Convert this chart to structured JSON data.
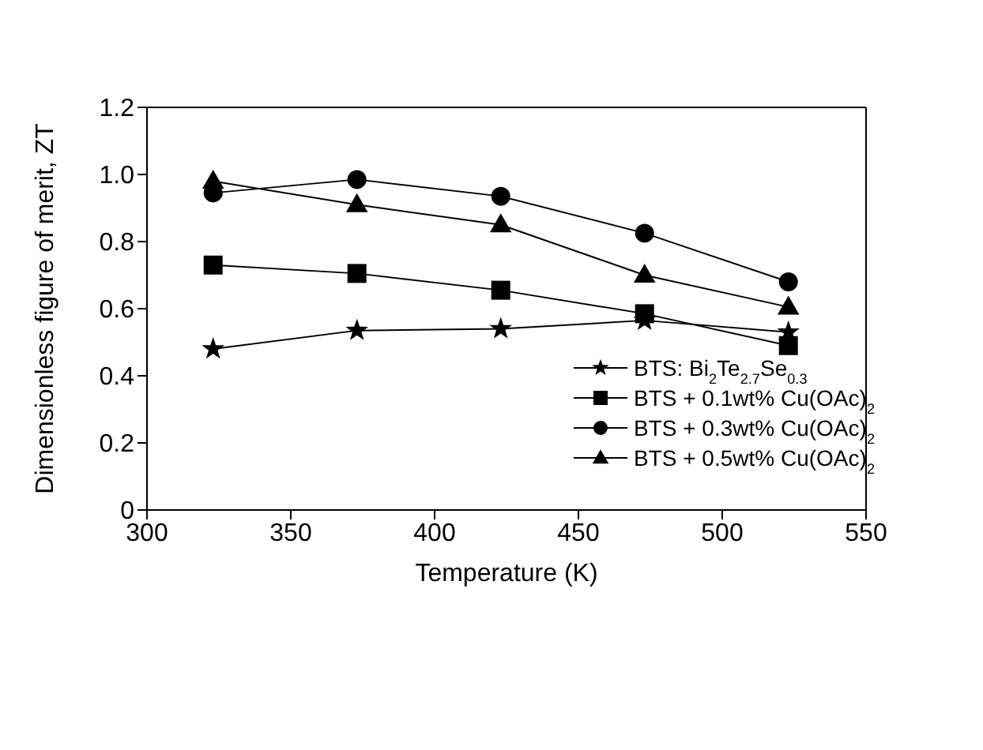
{
  "chart_data": {
    "type": "line",
    "xlabel": "Temperature (K)",
    "ylabel": "Dimensionless figure of merit, ZT",
    "x": [
      323,
      373,
      423,
      473,
      523
    ],
    "series": [
      {
        "name": "BTS: Bi$_{2}$Te$_{2.7}$Se$_{0.3}$",
        "color": "#000000",
        "marker": "star",
        "values": [
          0.48,
          0.535,
          0.54,
          0.565,
          0.53
        ]
      },
      {
        "name": "BTS + 0.1wt% Cu(OAc)$_{2}$",
        "color": "#000000",
        "marker": "square",
        "values": [
          0.73,
          0.705,
          0.655,
          0.585,
          0.49
        ]
      },
      {
        "name": "BTS + 0.3wt% Cu(OAc)$_{2}$",
        "color": "#000000",
        "marker": "circle",
        "values": [
          0.945,
          0.985,
          0.935,
          0.825,
          0.68
        ]
      },
      {
        "name": "BTS + 0.5wt% Cu(OAc)$_{2}$",
        "color": "#000000",
        "marker": "triangle",
        "values": [
          0.98,
          0.91,
          0.85,
          0.7,
          0.605
        ]
      }
    ],
    "xlim": [
      300,
      550
    ],
    "xticks": [
      300,
      350,
      400,
      450,
      500,
      550
    ],
    "ylim": [
      0,
      1.2
    ],
    "yticks": [
      0,
      {
        "value": 0.2,
        "label": "0.2"
      },
      {
        "value": 0.4,
        "label": "0.4"
      },
      {
        "value": 0.6,
        "label": "0.6"
      },
      {
        "value": 0.8,
        "label": "0.8"
      },
      {
        "value": 1,
        "label": "1.0"
      },
      {
        "value": 1.2,
        "label": "1.2"
      }
    ],
    "grid": false,
    "legend": "bottom right",
    "line_style": "solid"
  }
}
